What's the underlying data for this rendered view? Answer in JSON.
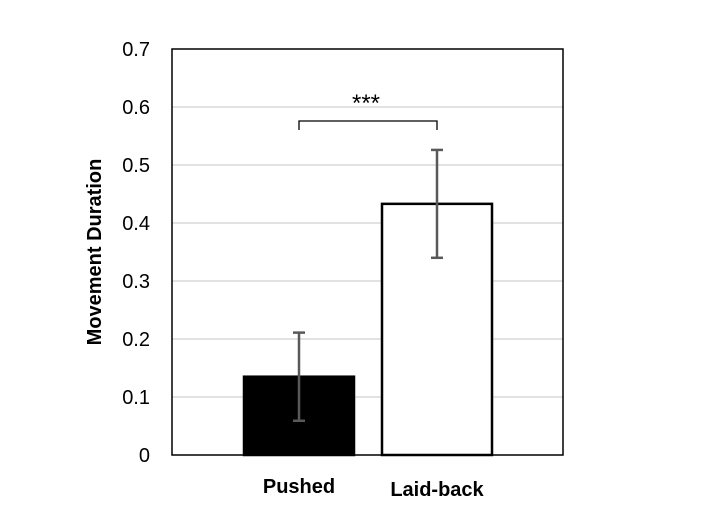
{
  "chart_data": {
    "type": "bar",
    "categories": [
      "Pushed",
      "Laid-back"
    ],
    "values": [
      0.135,
      0.433
    ],
    "error": [
      0.076,
      0.093
    ],
    "bar_colors": [
      "#000000",
      "#ffffff"
    ],
    "ylabel": "Movement Duration",
    "xlabel": "",
    "ylim": [
      0,
      0.7
    ],
    "yticks": [
      "0",
      "0.1",
      "0.2",
      "0.3",
      "0.4",
      "0.5",
      "0.6",
      "0.7"
    ],
    "grid": true,
    "significance": {
      "between": [
        "Pushed",
        "Laid-back"
      ],
      "label": "***"
    }
  }
}
